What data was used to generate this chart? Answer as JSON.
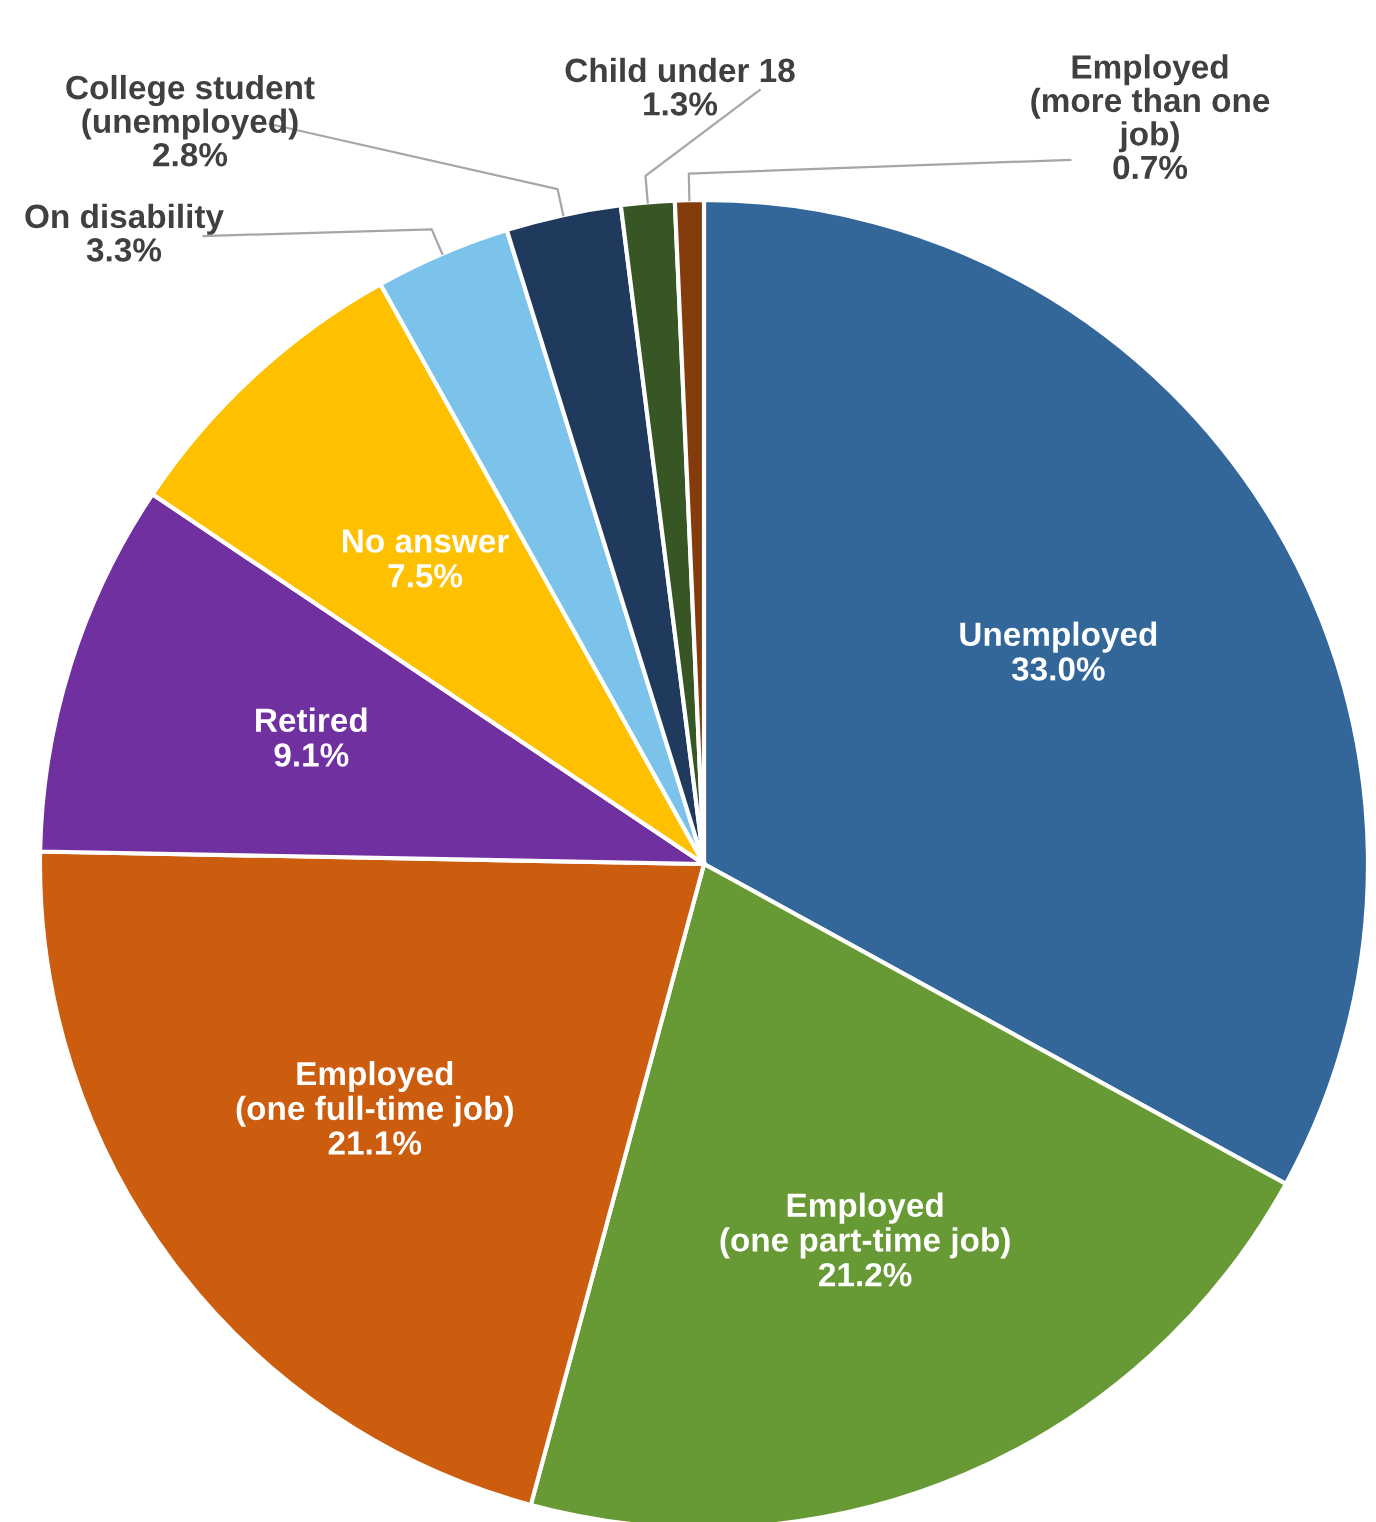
{
  "chart_data": {
    "type": "pie",
    "categories": [
      "Unemployed",
      "Employed\n(one part-time job)",
      "Employed\n(one full-time job)",
      "Retired",
      "No answer",
      "On disability",
      "College student\n(unemployed)",
      "Child under 18",
      "Employed\n(more than one\njob)"
    ],
    "values": [
      33.0,
      21.2,
      21.1,
      9.1,
      7.5,
      3.3,
      2.8,
      1.3,
      0.7
    ],
    "colors": [
      "#33679a",
      "#679a35",
      "#cc5c0e",
      "#7030a0",
      "#ffc000",
      "#7bc3ea",
      "#1f3a5c",
      "#375623",
      "#843c0c"
    ],
    "value_labels": [
      "33.0%",
      "21.2%",
      "21.1%",
      "9.1%",
      "7.5%",
      "3.3%",
      "2.8%",
      "1.3%",
      "0.7%"
    ]
  }
}
